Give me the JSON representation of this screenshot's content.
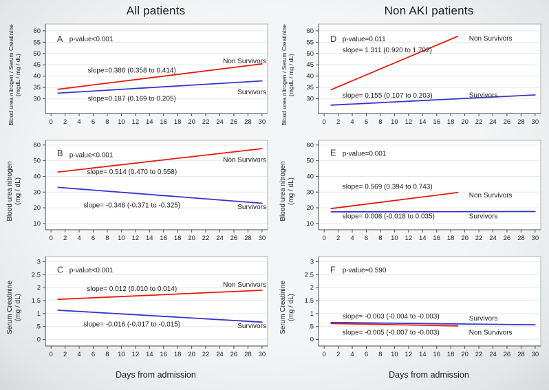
{
  "figure": {
    "columns": [
      {
        "title": "All patients",
        "xlabel": "Days from admission"
      },
      {
        "title": "Non AKI patients",
        "xlabel": "Days from admission"
      }
    ]
  },
  "colors": {
    "non_survivors": "#e5190f",
    "survivors": "#3535cb",
    "grid": "#e6e8e9",
    "border": "#b0b0b0",
    "axis": "#4a4a4a",
    "tick_text": "#1f1f1f",
    "annotation_text": "#1c1c1c",
    "letter_text": "#3d3d3d",
    "plot_bg": "#ffffff"
  },
  "chart_data": [
    {
      "panel": "A",
      "type": "line",
      "column": "All patients",
      "ylabel": [
        "Blood urea nitrogen / Serum Creatinine",
        "(mgdL / mg / dL)"
      ],
      "xlabel": "Days from admission",
      "xlim": [
        -0.8,
        30.8
      ],
      "ylim": [
        23.5,
        63
      ],
      "grid": "horizontal",
      "xticks": [
        0,
        2,
        4,
        6,
        8,
        10,
        12,
        14,
        16,
        18,
        20,
        22,
        24,
        26,
        28,
        30
      ],
      "ytick_values": [
        30,
        35,
        40,
        45,
        50,
        55,
        60
      ],
      "ytick_labels": [
        "30",
        "35",
        "40",
        "45",
        "50",
        "55",
        "60"
      ],
      "series": [
        {
          "name": "Non Survivors",
          "color_key": "non_survivors",
          "x": [
            1,
            30
          ],
          "y": [
            34.2,
            45.4
          ]
        },
        {
          "name": "Survivors",
          "color_key": "survivors",
          "x": [
            1,
            30
          ],
          "y": [
            32.5,
            37.9
          ]
        }
      ],
      "annotations": [
        {
          "role": "letter",
          "text": "A",
          "x": 0.85,
          "y": 56.5,
          "anchor": "start"
        },
        {
          "role": "p-value",
          "text": "p-value<0.001",
          "x": 2.6,
          "y": 56.2,
          "anchor": "start"
        },
        {
          "role": "slope",
          "text": "slope=0.386 (0.358 to 0.414)",
          "x": 11.5,
          "y": 42.3,
          "anchor": "middle"
        },
        {
          "role": "series-label",
          "text": "Non Survivors",
          "x": 30.6,
          "y": 46.4,
          "anchor": "end"
        },
        {
          "role": "slope",
          "text": "slope=0.187 (0.169 to 0.205)",
          "x": 11.5,
          "y": 29.9,
          "anchor": "middle"
        },
        {
          "role": "series-label",
          "text": "Survivors",
          "x": 30.6,
          "y": 32.7,
          "anchor": "end"
        }
      ]
    },
    {
      "panel": "B",
      "type": "line",
      "column": "All patients",
      "ylabel": [
        "Blood urea nitrogen",
        "(mg / dL)"
      ],
      "xlabel": "Days from admission",
      "xlim": [
        -0.8,
        30.8
      ],
      "ylim": [
        6,
        63
      ],
      "grid": "horizontal",
      "xticks": [
        0,
        2,
        4,
        6,
        8,
        10,
        12,
        14,
        16,
        18,
        20,
        22,
        24,
        26,
        28,
        30
      ],
      "ytick_values": [
        10,
        20,
        30,
        40,
        50,
        60
      ],
      "ytick_labels": [
        "10",
        "20",
        "30",
        "40",
        "50",
        "60"
      ],
      "series": [
        {
          "name": "Non Survivors",
          "color_key": "non_survivors",
          "x": [
            1,
            30
          ],
          "y": [
            42.8,
            57.7
          ]
        },
        {
          "name": "Survivors",
          "color_key": "survivors",
          "x": [
            1,
            30
          ],
          "y": [
            33.0,
            22.9
          ]
        }
      ],
      "annotations": [
        {
          "role": "letter",
          "text": "B",
          "x": 0.85,
          "y": 54.8,
          "anchor": "start"
        },
        {
          "role": "p-value",
          "text": "p-value<0.001",
          "x": 2.6,
          "y": 53.3,
          "anchor": "start"
        },
        {
          "role": "slope",
          "text": "slope= 0.514 (0.470 to 0.558)",
          "x": 11.5,
          "y": 42.6,
          "anchor": "middle"
        },
        {
          "role": "series-label",
          "text": "Non Survivors",
          "x": 30.6,
          "y": 50.2,
          "anchor": "end"
        },
        {
          "role": "slope",
          "text": "slope= -0.348 (-0.371 to -0.325)",
          "x": 11.5,
          "y": 21.4,
          "anchor": "middle"
        },
        {
          "role": "series-label",
          "text": "Survivors",
          "x": 30.6,
          "y": 20.3,
          "anchor": "end"
        }
      ]
    },
    {
      "panel": "C",
      "type": "line",
      "column": "All patients",
      "ylabel": [
        "Serum Creatinine",
        "(mg / dL)"
      ],
      "xlabel": "Days from admission",
      "xlim": [
        -0.8,
        30.8
      ],
      "ylim": [
        -0.25,
        3.2
      ],
      "grid": "horizontal",
      "xticks": [
        0,
        2,
        4,
        6,
        8,
        10,
        12,
        14,
        16,
        18,
        20,
        22,
        24,
        26,
        28,
        30
      ],
      "ytick_values": [
        0,
        0.5,
        1,
        1.5,
        2,
        2.5,
        3
      ],
      "ytick_labels": [
        "0",
        ".5",
        "1",
        "1.5",
        "2",
        "2.5",
        "3"
      ],
      "series": [
        {
          "name": "Non Survivors",
          "color_key": "non_survivors",
          "x": [
            1,
            30
          ],
          "y": [
            1.55,
            1.9
          ]
        },
        {
          "name": "Survivors",
          "color_key": "survivors",
          "x": [
            1,
            30
          ],
          "y": [
            1.13,
            0.67
          ]
        }
      ],
      "annotations": [
        {
          "role": "letter",
          "text": "C",
          "x": 0.85,
          "y": 2.7,
          "anchor": "start"
        },
        {
          "role": "p-value",
          "text": "p-value<0.001",
          "x": 2.6,
          "y": 2.66,
          "anchor": "start"
        },
        {
          "role": "slope",
          "text": "slope= 0.012 (0.010 to 0.014)",
          "x": 11.5,
          "y": 1.94,
          "anchor": "middle"
        },
        {
          "role": "series-label",
          "text": "Non Survivors",
          "x": 30.6,
          "y": 2.1,
          "anchor": "end"
        },
        {
          "role": "slope",
          "text": "slope= -0.016 (-0.017 to -0.015)",
          "x": 11.5,
          "y": 0.57,
          "anchor": "middle"
        },
        {
          "role": "series-label",
          "text": "Survivors",
          "x": 30.6,
          "y": 0.51,
          "anchor": "end"
        }
      ]
    },
    {
      "panel": "D",
      "type": "line",
      "column": "Non AKI patients",
      "ylabel": [
        "Blood urea nitrogen / Serum Creatinine",
        "(mgdL / mg / dL)"
      ],
      "xlabel": "Days from admission",
      "xlim": [
        -0.8,
        30.8
      ],
      "ylim": [
        23.5,
        63
      ],
      "grid": "horizontal",
      "xticks": [
        0,
        2,
        4,
        6,
        8,
        10,
        12,
        14,
        16,
        18,
        20,
        22,
        24,
        26,
        28,
        30
      ],
      "ytick_values": [
        30,
        35,
        40,
        45,
        50,
        55,
        60
      ],
      "ytick_labels": [
        "30",
        "35",
        "40",
        "45",
        "50",
        "55",
        "60"
      ],
      "series": [
        {
          "name": "Non Survivors",
          "color_key": "non_survivors",
          "x": [
            1,
            19
          ],
          "y": [
            34.0,
            57.6
          ]
        },
        {
          "name": "Survivors",
          "color_key": "survivors",
          "x": [
            1,
            30
          ],
          "y": [
            27.2,
            31.7
          ]
        }
      ],
      "annotations": [
        {
          "role": "letter",
          "text": "D",
          "x": 0.85,
          "y": 56.5,
          "anchor": "start"
        },
        {
          "role": "p-value",
          "text": "p-value=0.011",
          "x": 2.6,
          "y": 56.2,
          "anchor": "start"
        },
        {
          "role": "slope",
          "text": "slope= 1.311 (0.920 to 1.702)",
          "x": 2.6,
          "y": 51.3,
          "anchor": "start"
        },
        {
          "role": "series-label",
          "text": "Non Survivors",
          "x": 20.6,
          "y": 56.4,
          "anchor": "start"
        },
        {
          "role": "slope",
          "text": "slope= 0.155 (0.107 to 0.203)",
          "x": 2.6,
          "y": 31.3,
          "anchor": "start"
        },
        {
          "role": "series-label",
          "text": "Survivors",
          "x": 20.6,
          "y": 31.4,
          "anchor": "start"
        }
      ]
    },
    {
      "panel": "E",
      "type": "line",
      "column": "Non AKI patients",
      "ylabel": [
        "Blood urea nitrogen",
        "(mg / dL)"
      ],
      "xlabel": "Days from admission",
      "xlim": [
        -0.8,
        30.8
      ],
      "ylim": [
        6,
        63
      ],
      "grid": "horizontal",
      "xticks": [
        0,
        2,
        4,
        6,
        8,
        10,
        12,
        14,
        16,
        18,
        20,
        22,
        24,
        26,
        28,
        30
      ],
      "ytick_values": [
        10,
        20,
        30,
        40,
        50,
        60
      ],
      "ytick_labels": [
        "10",
        "20",
        "30",
        "40",
        "50",
        "60"
      ],
      "series": [
        {
          "name": "Non Survivors",
          "color_key": "non_survivors",
          "x": [
            1,
            19
          ],
          "y": [
            19.5,
            29.7
          ]
        },
        {
          "name": "Survivors",
          "color_key": "survivors",
          "x": [
            1,
            30
          ],
          "y": [
            17.4,
            17.6
          ]
        }
      ],
      "annotations": [
        {
          "role": "letter",
          "text": "E",
          "x": 0.85,
          "y": 55.0,
          "anchor": "start"
        },
        {
          "role": "p-value",
          "text": "p-value=0.001",
          "x": 2.6,
          "y": 54.3,
          "anchor": "start"
        },
        {
          "role": "slope",
          "text": "slope= 0.569 (0.394 to 0.743)",
          "x": 2.6,
          "y": 33.2,
          "anchor": "start"
        },
        {
          "role": "series-label",
          "text": "Non Survivors",
          "x": 20.6,
          "y": 27.6,
          "anchor": "start"
        },
        {
          "role": "slope",
          "text": "slope= 0.008 (-0.018 to 0.035)",
          "x": 2.6,
          "y": 14.4,
          "anchor": "start"
        },
        {
          "role": "series-label",
          "text": "Survivors",
          "x": 20.6,
          "y": 14.4,
          "anchor": "start"
        }
      ]
    },
    {
      "panel": "F",
      "type": "line",
      "column": "Non AKI patients",
      "ylabel": [
        "Serum Creatinine",
        "(mg / dL)"
      ],
      "xlabel": "Days from admission",
      "xlim": [
        -0.8,
        30.8
      ],
      "ylim": [
        -0.25,
        3.2
      ],
      "grid": "horizontal",
      "xticks": [
        0,
        2,
        4,
        6,
        8,
        10,
        12,
        14,
        16,
        18,
        20,
        22,
        24,
        26,
        28,
        30
      ],
      "ytick_values": [
        0,
        0.5,
        1,
        1.5,
        2,
        2.5,
        3
      ],
      "ytick_labels": [
        "0",
        ".5",
        "1",
        "1.5",
        "2",
        "2.5",
        "3"
      ],
      "series": [
        {
          "name": "Non Survivors",
          "color_key": "non_survivors",
          "x": [
            1,
            19
          ],
          "y": [
            0.615,
            0.525
          ]
        },
        {
          "name": "Survivors",
          "color_key": "survivors",
          "x": [
            1,
            30
          ],
          "y": [
            0.655,
            0.568
          ]
        }
      ],
      "annotations": [
        {
          "role": "letter",
          "text": "F",
          "x": 0.85,
          "y": 2.7,
          "anchor": "start"
        },
        {
          "role": "p-value",
          "text": "p-value=0.590",
          "x": 2.6,
          "y": 2.66,
          "anchor": "start"
        },
        {
          "role": "slope",
          "text": "slope= -0.003 (-0.004 to -0.003)",
          "x": 2.6,
          "y": 0.88,
          "anchor": "start"
        },
        {
          "role": "series-label",
          "text": "Survivors",
          "x": 20.6,
          "y": 0.8,
          "anchor": "start"
        },
        {
          "role": "slope",
          "text": "slope= -0.005 (-0.007 to -0.003)",
          "x": 2.6,
          "y": 0.26,
          "anchor": "start"
        },
        {
          "role": "series-label",
          "text": "Non Survivors",
          "x": 20.6,
          "y": 0.26,
          "anchor": "start"
        }
      ]
    }
  ]
}
